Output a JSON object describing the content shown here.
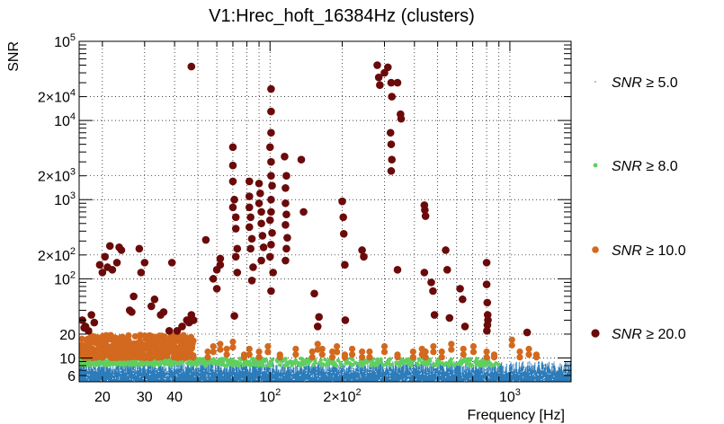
{
  "chart_data": {
    "type": "scatter",
    "title": "V1:Hrec_hoft_16384Hz (clusters)",
    "xlabel": "Frequency [Hz]",
    "ylabel": "SNR",
    "xscale": "log",
    "yscale": "log",
    "xlim": [
      16,
      1800
    ],
    "ylim": [
      5,
      100000
    ],
    "x_ticks": [
      {
        "value": 20,
        "label": "20"
      },
      {
        "value": 30,
        "label": "30"
      },
      {
        "value": 40,
        "label": "40"
      },
      {
        "value": 100,
        "label": "10^2"
      },
      {
        "value": 200,
        "label": "2×10^2"
      },
      {
        "value": 1000,
        "label": "10^3"
      }
    ],
    "y_ticks": [
      {
        "value": 6,
        "label": "6"
      },
      {
        "value": 10,
        "label": "10"
      },
      {
        "value": 20,
        "label": "20"
      },
      {
        "value": 100,
        "label": "10^2"
      },
      {
        "value": 200,
        "label": "2×10^2"
      },
      {
        "value": 1000,
        "label": "10^3"
      },
      {
        "value": 2000,
        "label": "2×10^3"
      },
      {
        "value": 10000,
        "label": "10^4"
      },
      {
        "value": 20000,
        "label": "2×10^4"
      },
      {
        "value": 100000,
        "label": "10^5"
      }
    ],
    "legend": [
      {
        "label": "SNR ≥ 5.0",
        "symbol": "SNR",
        "text": "≥ 5.0",
        "color": "#2b7bba",
        "marker": "dot"
      },
      {
        "label": "SNR ≥ 8.0",
        "symbol": "SNR",
        "text": "≥ 8.0",
        "color": "#5fcf5f",
        "marker": "small"
      },
      {
        "label": "SNR ≥ 10.0",
        "symbol": "SNR",
        "text": "≥ 10.0",
        "color": "#d2691e",
        "marker": "medium"
      },
      {
        "label": "SNR ≥ 20.0",
        "symbol": "SNR",
        "text": "≥ 20.0",
        "color": "#6b0a0a",
        "marker": "large"
      }
    ],
    "series": [
      {
        "name": "SNR ≥ 20.0",
        "color": "#6b0a0a",
        "points": [
          [
            16.5,
            30
          ],
          [
            17,
            25
          ],
          [
            17.5,
            22
          ],
          [
            18,
            35
          ],
          [
            18.5,
            28
          ],
          [
            16.8,
            24
          ],
          [
            19.5,
            150
          ],
          [
            20,
            120
          ],
          [
            21,
            140
          ],
          [
            22,
            130
          ],
          [
            21.5,
            260
          ],
          [
            20.5,
            190
          ],
          [
            23,
            160
          ],
          [
            23.5,
            250
          ],
          [
            24,
            230
          ],
          [
            26,
            40
          ],
          [
            27,
            60
          ],
          [
            26.5,
            38
          ],
          [
            28.5,
            240
          ],
          [
            29,
            120
          ],
          [
            30,
            160
          ],
          [
            32,
            45
          ],
          [
            33,
            55
          ],
          [
            35,
            35
          ],
          [
            36,
            38
          ],
          [
            38,
            22
          ],
          [
            39,
            160
          ],
          [
            41,
            22
          ],
          [
            43,
            25
          ],
          [
            45,
            30
          ],
          [
            46,
            28
          ],
          [
            47,
            35
          ],
          [
            48,
            30
          ],
          [
            47,
            48000
          ],
          [
            54,
            310
          ],
          [
            58,
            100
          ],
          [
            60,
            130
          ],
          [
            60,
            75
          ],
          [
            62,
            150
          ],
          [
            62,
            180
          ],
          [
            70,
            4600
          ],
          [
            70,
            2700
          ],
          [
            70,
            1700
          ],
          [
            71,
            1000
          ],
          [
            70,
            800
          ],
          [
            72,
            600
          ],
          [
            72,
            430
          ],
          [
            73,
            240
          ],
          [
            72,
            190
          ],
          [
            73,
            120
          ],
          [
            71,
            34
          ],
          [
            82,
            1700
          ],
          [
            82,
            1100
          ],
          [
            82,
            800
          ],
          [
            83,
            600
          ],
          [
            82,
            450
          ],
          [
            84,
            320
          ],
          [
            83,
            240
          ],
          [
            85,
            140
          ],
          [
            84,
            95
          ],
          [
            90,
            1600
          ],
          [
            91,
            1200
          ],
          [
            90,
            900
          ],
          [
            92,
            700
          ],
          [
            92,
            500
          ],
          [
            93,
            350
          ],
          [
            94,
            250
          ],
          [
            92,
            170
          ],
          [
            101,
            25000
          ],
          [
            101,
            13000
          ],
          [
            101,
            7000
          ],
          [
            100,
            4600
          ],
          [
            101,
            3000
          ],
          [
            101,
            2000
          ],
          [
            102,
            1500
          ],
          [
            101,
            1000
          ],
          [
            101,
            700
          ],
          [
            100,
            550
          ],
          [
            102,
            380
          ],
          [
            101,
            270
          ],
          [
            100,
            190
          ],
          [
            103,
            120
          ],
          [
            101,
            70
          ],
          [
            115,
            3500
          ],
          [
            117,
            2000
          ],
          [
            116,
            1400
          ],
          [
            116,
            900
          ],
          [
            117,
            650
          ],
          [
            116,
            480
          ],
          [
            118,
            330
          ],
          [
            117,
            240
          ],
          [
            116,
            170
          ],
          [
            135,
            3200
          ],
          [
            138,
            700
          ],
          [
            153,
            65
          ],
          [
            160,
            33
          ],
          [
            158,
            25
          ],
          [
            200,
            950
          ],
          [
            202,
            600
          ],
          [
            203,
            370
          ],
          [
            205,
            150
          ],
          [
            206,
            30
          ],
          [
            242,
            230
          ],
          [
            246,
            190
          ],
          [
            280,
            50000
          ],
          [
            284,
            35000
          ],
          [
            287,
            28000
          ],
          [
            300,
            40000
          ],
          [
            310,
            47000
          ],
          [
            320,
            30000
          ],
          [
            322,
            20000
          ],
          [
            318,
            7000
          ],
          [
            320,
            5000
          ],
          [
            320,
            2300
          ],
          [
            322,
            3200
          ],
          [
            340,
            30000
          ],
          [
            350,
            12000
          ],
          [
            352,
            10500
          ],
          [
            340,
            130
          ],
          [
            440,
            850
          ],
          [
            442,
            740
          ],
          [
            445,
            620
          ],
          [
            440,
            120
          ],
          [
            470,
            90
          ],
          [
            478,
            70
          ],
          [
            485,
            35
          ],
          [
            540,
            230
          ],
          [
            548,
            130
          ],
          [
            560,
            32
          ],
          [
            620,
            75
          ],
          [
            635,
            55
          ],
          [
            650,
            25
          ],
          [
            800,
            160
          ],
          [
            800,
            85
          ],
          [
            805,
            50
          ],
          [
            808,
            35
          ],
          [
            810,
            30
          ],
          [
            806,
            26
          ],
          [
            802,
            22
          ],
          [
            1180,
            21
          ]
        ]
      },
      {
        "name": "SNR ≥ 10.0",
        "color": "#d2691e",
        "cluster_ranges": [
          [
            16.3,
            48,
            10,
            19.5
          ]
        ],
        "points": [
          [
            55,
            12
          ],
          [
            58,
            14
          ],
          [
            62,
            15
          ],
          [
            66,
            13
          ],
          [
            70,
            16
          ],
          [
            78,
            11
          ],
          [
            82,
            13
          ],
          [
            90,
            12
          ],
          [
            98,
            14
          ],
          [
            110,
            11
          ],
          [
            128,
            13
          ],
          [
            150,
            12
          ],
          [
            158,
            15
          ],
          [
            165,
            13
          ],
          [
            182,
            12
          ],
          [
            190,
            14
          ],
          [
            205,
            11
          ],
          [
            220,
            13
          ],
          [
            242,
            12
          ],
          [
            260,
            12
          ],
          [
            300,
            14
          ],
          [
            340,
            11
          ],
          [
            395,
            12
          ],
          [
            430,
            13
          ],
          [
            445,
            12
          ],
          [
            480,
            14
          ],
          [
            520,
            12
          ],
          [
            570,
            15
          ],
          [
            640,
            13
          ],
          [
            705,
            14
          ],
          [
            800,
            12
          ],
          [
            860,
            11
          ],
          [
            1020,
            17
          ],
          [
            1100,
            12
          ],
          [
            1200,
            13
          ],
          [
            1290,
            11
          ]
        ]
      },
      {
        "name": "SNR ≥ 8.0",
        "color": "#5fcf5f",
        "cluster_ranges": [
          [
            16.3,
            900,
            8,
            9.8
          ]
        ],
        "points": []
      },
      {
        "name": "SNR ≥ 5.0",
        "color": "#2b7bba",
        "band": [
          5,
          8
        ],
        "x_range": [
          16,
          1800
        ]
      }
    ]
  }
}
